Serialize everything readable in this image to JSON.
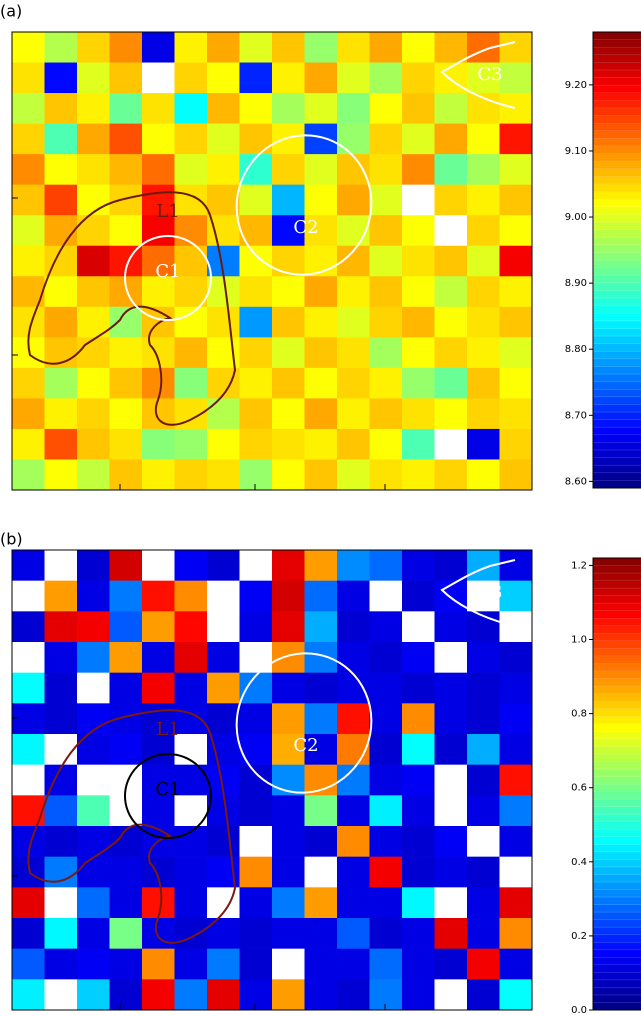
{
  "chart_data": [
    {
      "type": "heatmap",
      "title": "(a)",
      "colormap": "jet",
      "zlim": [
        8.59,
        9.28
      ],
      "zticks": [
        {
          "value": 8.6,
          "label": "8.60"
        },
        {
          "value": 8.7,
          "label": "8.70"
        },
        {
          "value": 8.8,
          "label": "8.80"
        },
        {
          "value": 8.9,
          "label": "8.90"
        },
        {
          "value": 9.0,
          "label": "9.00"
        },
        {
          "value": 9.1,
          "label": "9.10"
        },
        {
          "value": 9.2,
          "label": "9.20"
        }
      ],
      "annotations": [
        "C1",
        "C2",
        "C3",
        "L1"
      ],
      "z": [
        [
          9.02,
          8.97,
          9.05,
          9.1,
          8.66,
          9.03,
          9.08,
          9.0,
          9.06,
          8.95,
          9.04,
          9.08,
          9.02,
          9.07,
          9.12,
          9.05
        ],
        [
          9.04,
          8.68,
          9.0,
          9.06,
          null,
          9.05,
          9.02,
          8.7,
          9.03,
          9.08,
          9.0,
          8.96,
          9.05,
          9.03,
          9.0,
          8.98
        ],
        [
          8.98,
          9.06,
          9.03,
          8.92,
          9.04,
          8.85,
          9.07,
          9.02,
          8.96,
          9.0,
          8.94,
          9.02,
          9.06,
          8.98,
          9.04,
          9.03
        ],
        [
          9.05,
          8.9,
          9.08,
          9.14,
          9.02,
          9.05,
          9.0,
          9.06,
          9.03,
          8.72,
          8.95,
          9.05,
          9.0,
          9.08,
          9.02,
          9.18
        ],
        [
          9.1,
          9.02,
          9.04,
          9.07,
          9.12,
          9.0,
          9.03,
          8.88,
          9.05,
          9.0,
          9.06,
          9.04,
          9.1,
          8.92,
          8.96,
          9.0
        ],
        [
          9.06,
          9.15,
          9.02,
          9.05,
          9.18,
          9.04,
          9.06,
          9.0,
          8.8,
          9.02,
          9.08,
          9.0,
          null,
          9.05,
          9.03,
          9.06
        ],
        [
          9.0,
          9.08,
          9.05,
          9.02,
          9.2,
          9.1,
          9.04,
          9.07,
          8.68,
          9.04,
          9.0,
          9.06,
          9.02,
          null,
          9.05,
          9.02
        ],
        [
          9.03,
          9.05,
          9.22,
          9.18,
          9.12,
          9.06,
          8.76,
          9.02,
          9.05,
          9.03,
          9.07,
          9.0,
          9.04,
          9.06,
          9.0,
          9.2
        ],
        [
          9.07,
          9.02,
          9.06,
          9.08,
          9.03,
          9.05,
          9.0,
          9.04,
          9.02,
          9.08,
          9.03,
          9.06,
          9.02,
          8.98,
          9.05,
          9.03
        ],
        [
          9.04,
          9.08,
          9.03,
          8.95,
          9.06,
          9.02,
          9.04,
          8.78,
          9.06,
          9.03,
          9.0,
          9.05,
          9.07,
          9.02,
          9.04,
          9.06
        ],
        [
          9.02,
          9.06,
          9.05,
          9.03,
          9.04,
          9.07,
          9.02,
          9.05,
          9.0,
          9.06,
          9.04,
          8.96,
          9.02,
          9.05,
          9.03,
          9.0
        ],
        [
          9.05,
          8.96,
          9.02,
          9.06,
          9.1,
          8.94,
          9.05,
          9.03,
          9.06,
          9.02,
          9.05,
          9.03,
          8.95,
          8.92,
          9.06,
          9.02
        ],
        [
          9.08,
          9.03,
          9.05,
          9.02,
          9.06,
          9.04,
          8.97,
          9.06,
          9.02,
          9.08,
          9.03,
          9.06,
          9.04,
          9.02,
          9.05,
          9.04
        ],
        [
          9.03,
          9.14,
          9.06,
          9.04,
          8.94,
          8.95,
          9.02,
          9.05,
          9.04,
          9.03,
          9.06,
          9.02,
          8.9,
          null,
          8.66,
          9.05
        ],
        [
          8.96,
          9.02,
          8.98,
          9.06,
          9.03,
          9.05,
          9.04,
          8.95,
          9.02,
          9.06,
          9.0,
          9.04,
          9.03,
          9.05,
          9.02,
          9.06
        ]
      ]
    },
    {
      "type": "heatmap",
      "title": "(b)",
      "colormap": "jet",
      "zlim": [
        0,
        1.22
      ],
      "zticks": [
        {
          "value": 0,
          "label": "0.0"
        },
        0.2,
        0.4,
        0.6,
        0.8,
        {
          "value": 1,
          "label": "1.0"
        },
        1.2
      ],
      "annotations": [
        "C1",
        "C2",
        "C3",
        "L1"
      ],
      "z": [
        [
          0.12,
          null,
          0.1,
          1.12,
          null,
          0.14,
          0.1,
          null,
          1.1,
          0.88,
          0.32,
          0.28,
          0.12,
          0.1,
          0.36,
          0.12
        ],
        [
          null,
          0.88,
          0.12,
          0.3,
          1.05,
          0.9,
          null,
          0.14,
          1.12,
          0.28,
          0.12,
          null,
          0.1,
          0.14,
          null,
          0.4
        ],
        [
          0.1,
          1.1,
          1.08,
          0.26,
          0.88,
          1.06,
          null,
          0.12,
          1.1,
          0.36,
          0.1,
          0.12,
          null,
          0.12,
          0.1,
          null
        ],
        [
          null,
          0.12,
          0.3,
          0.88,
          0.12,
          1.1,
          0.12,
          null,
          0.9,
          0.3,
          0.12,
          0.1,
          0.14,
          null,
          0.12,
          0.1
        ],
        [
          0.46,
          0.1,
          null,
          0.12,
          1.08,
          0.12,
          0.88,
          0.3,
          0.12,
          0.1,
          0.12,
          0.12,
          0.1,
          0.12,
          0.1,
          0.12
        ],
        [
          0.12,
          0.1,
          0.14,
          0.12,
          0.1,
          0.12,
          0.1,
          0.12,
          0.88,
          0.3,
          1.05,
          0.12,
          0.9,
          0.12,
          0.1,
          0.14
        ],
        [
          0.45,
          null,
          0.12,
          0.14,
          0.1,
          null,
          0.12,
          0.14,
          0.86,
          0.12,
          0.92,
          0.1,
          0.46,
          0.1,
          0.36,
          0.12
        ],
        [
          null,
          0.12,
          null,
          null,
          0.12,
          0.12,
          0.14,
          0.1,
          0.32,
          0.9,
          0.3,
          0.12,
          0.14,
          null,
          0.1,
          1.05
        ],
        [
          1.05,
          0.26,
          0.55,
          null,
          0.12,
          null,
          0.12,
          0.1,
          0.12,
          0.6,
          0.12,
          0.44,
          0.12,
          null,
          0.12,
          0.3
        ],
        [
          0.12,
          0.1,
          0.12,
          0.1,
          0.12,
          0.12,
          0.1,
          null,
          0.12,
          0.1,
          0.9,
          0.12,
          0.1,
          0.14,
          null,
          0.12
        ],
        [
          0.1,
          0.3,
          0.12,
          0.12,
          0.1,
          0.12,
          0.14,
          0.9,
          0.12,
          null,
          0.12,
          1.08,
          0.1,
          0.12,
          0.1,
          null
        ],
        [
          1.1,
          null,
          0.28,
          0.12,
          1.05,
          0.12,
          null,
          0.12,
          0.3,
          0.88,
          0.12,
          0.12,
          0.45,
          null,
          0.12,
          1.1
        ],
        [
          0.1,
          0.45,
          0.12,
          0.6,
          0.12,
          0.1,
          0.12,
          0.1,
          0.12,
          0.12,
          0.26,
          0.1,
          0.12,
          1.1,
          0.12,
          0.9
        ],
        [
          0.26,
          0.12,
          0.14,
          0.12,
          0.9,
          0.12,
          0.3,
          0.1,
          null,
          0.12,
          0.12,
          0.28,
          0.12,
          0.1,
          1.08,
          0.12
        ],
        [
          0.44,
          null,
          0.4,
          0.1,
          1.08,
          0.3,
          1.1,
          0.12,
          0.88,
          0.12,
          0.1,
          0.3,
          0.12,
          null,
          0.1,
          0.46
        ]
      ]
    }
  ]
}
